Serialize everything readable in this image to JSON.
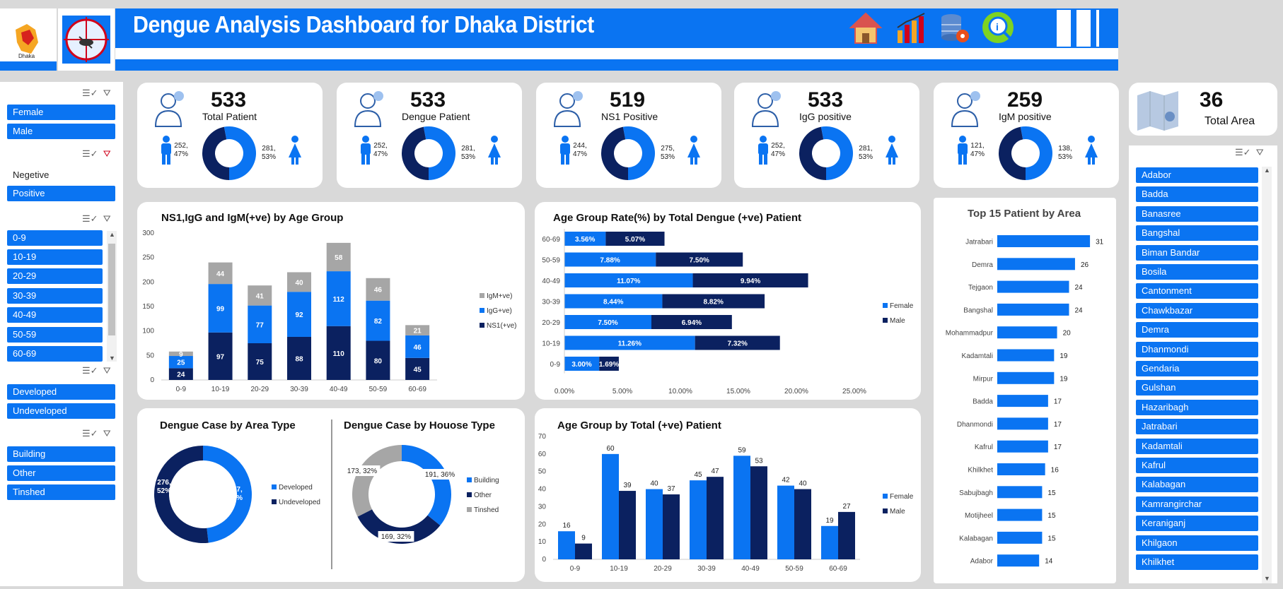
{
  "header": {
    "logo_label": "Dhaka",
    "title": "Dengue Analysis Dashboard for Dhaka District",
    "nav_icons": [
      "home-icon",
      "bar-chart-icon",
      "database-gear-icon",
      "info-search-icon"
    ]
  },
  "slicers": {
    "gender": [
      "Female",
      "Male"
    ],
    "result": [
      "Negetive",
      "Positive"
    ],
    "age": [
      "0-9",
      "10-19",
      "20-29",
      "30-39",
      "40-49",
      "50-59",
      "60-69"
    ],
    "area_type": [
      "Developed",
      "Undeveloped"
    ],
    "house_type": [
      "Building",
      "Other",
      "Tinshed"
    ]
  },
  "kpis": [
    {
      "value": "533",
      "label": "Total Patient",
      "male": "252,\n47%",
      "female": "281,\n53%",
      "male_frac": 0.47
    },
    {
      "value": "533",
      "label": "Dengue Patient",
      "male": "252,\n47%",
      "female": "281,\n53%",
      "male_frac": 0.47
    },
    {
      "value": "519",
      "label": "NS1 Positive",
      "male": "244,\n47%",
      "female": "275,\n53%",
      "male_frac": 0.47
    },
    {
      "value": "533",
      "label": "IgG positive",
      "male": "252,\n47%",
      "female": "281,\n53%",
      "male_frac": 0.47
    },
    {
      "value": "259",
      "label": "IgM positive",
      "male": "121,\n47%",
      "female": "138,\n53%",
      "male_frac": 0.47
    }
  ],
  "total_area": {
    "value": "36",
    "label": "Total Area"
  },
  "colors": {
    "primary": "#0a74f2",
    "dark": "#0b2160",
    "gray": "#a6a6a6"
  },
  "chart_data": [
    {
      "type": "bar",
      "title": "NS1,IgG and IgM(+ve) by Age Group",
      "stacked": true,
      "categories": [
        "0-9",
        "10-19",
        "20-29",
        "30-39",
        "40-49",
        "50-59",
        "60-69"
      ],
      "ylim": [
        0,
        300
      ],
      "yticks": [
        "0",
        "50",
        "100",
        "150",
        "200",
        "250",
        "300"
      ],
      "series": [
        {
          "name": "NS1(+ve)",
          "values": [
            24,
            97,
            75,
            88,
            110,
            80,
            45
          ]
        },
        {
          "name": "IgG+ve)",
          "values": [
            25,
            99,
            77,
            92,
            112,
            82,
            46
          ]
        },
        {
          "name": "IgM+ve)",
          "values": [
            9,
            44,
            41,
            40,
            58,
            46,
            21
          ]
        }
      ],
      "legend": "right"
    },
    {
      "type": "bar",
      "orientation": "horizontal",
      "stacked": true,
      "title": "Age Group Rate(%) by Total Dengue (+ve) Patient",
      "categories": [
        "60-69",
        "50-59",
        "40-49",
        "30-39",
        "20-29",
        "10-19",
        "0-9"
      ],
      "xlim": [
        0,
        25
      ],
      "xticks": [
        "0.00%",
        "5.00%",
        "10.00%",
        "15.00%",
        "20.00%",
        "25.00%"
      ],
      "series": [
        {
          "name": "Female",
          "values": [
            3.56,
            7.88,
            11.07,
            8.44,
            7.5,
            11.26,
            3.0
          ],
          "labels": [
            "3.56%",
            "7.88%",
            "11.07%",
            "8.44%",
            "7.50%",
            "11.26%",
            "3.00%"
          ]
        },
        {
          "name": "Male",
          "values": [
            5.07,
            7.5,
            9.94,
            8.82,
            6.94,
            7.32,
            1.69
          ],
          "labels": [
            "5.07%",
            "7.50%",
            "9.94%",
            "8.82%",
            "6.94%",
            "7.32%",
            "1.69%"
          ]
        }
      ],
      "legend": "right"
    },
    {
      "type": "bar",
      "orientation": "horizontal",
      "title": "Top 15 Patient by Area",
      "categories": [
        "Jatrabari",
        "Demra",
        "Tejgaon",
        "Bangshal",
        "Mohammadpur",
        "Kadamtali",
        "Mirpur",
        "Badda",
        "Dhanmondi",
        "Kafrul",
        "Khilkhet",
        "Sabujbagh",
        "Motijheel",
        "Kalabagan",
        "Adabor"
      ],
      "values": [
        31,
        26,
        24,
        24,
        20,
        19,
        19,
        17,
        17,
        17,
        16,
        15,
        15,
        15,
        14
      ],
      "xlim": [
        0,
        35
      ]
    },
    {
      "type": "pie",
      "donut": true,
      "title": "Dengue Case by Area Type",
      "categories": [
        "Developed",
        "Undeveloped"
      ],
      "values": [
        257,
        276
      ],
      "labels": [
        "257,\n48%",
        "276,\n52%"
      ],
      "legend": "right"
    },
    {
      "type": "pie",
      "donut": true,
      "title": "Dengue Case by Houose Type",
      "categories": [
        "Building",
        "Other",
        "Tinshed"
      ],
      "values": [
        191,
        169,
        173
      ],
      "labels": [
        "191, 36%",
        "169, 32%",
        "173, 32%"
      ],
      "legend": "right"
    },
    {
      "type": "bar",
      "title": "Age Group by Total (+ve) Patient",
      "categories": [
        "0-9",
        "10-19",
        "20-29",
        "30-39",
        "40-49",
        "50-59",
        "60-69"
      ],
      "ylim": [
        0,
        70
      ],
      "yticks": [
        "0",
        "10",
        "20",
        "30",
        "40",
        "50",
        "60",
        "70"
      ],
      "series": [
        {
          "name": "Female",
          "values": [
            16,
            60,
            40,
            45,
            59,
            42,
            19
          ]
        },
        {
          "name": "Male",
          "values": [
            9,
            39,
            37,
            47,
            53,
            40,
            27
          ]
        }
      ],
      "legend": "right"
    }
  ],
  "area_list": [
    "Adabor",
    "Badda",
    "Banasree",
    "Bangshal",
    "Biman Bandar",
    "Bosila",
    "Cantonment",
    "Chawkbazar",
    "Demra",
    "Dhanmondi",
    "Gendaria",
    "Gulshan",
    "Hazaribagh",
    "Jatrabari",
    "Kadamtali",
    "Kafrul",
    "Kalabagan",
    "Kamrangirchar",
    "Keraniganj",
    "Khilgaon",
    "Khilkhet"
  ]
}
